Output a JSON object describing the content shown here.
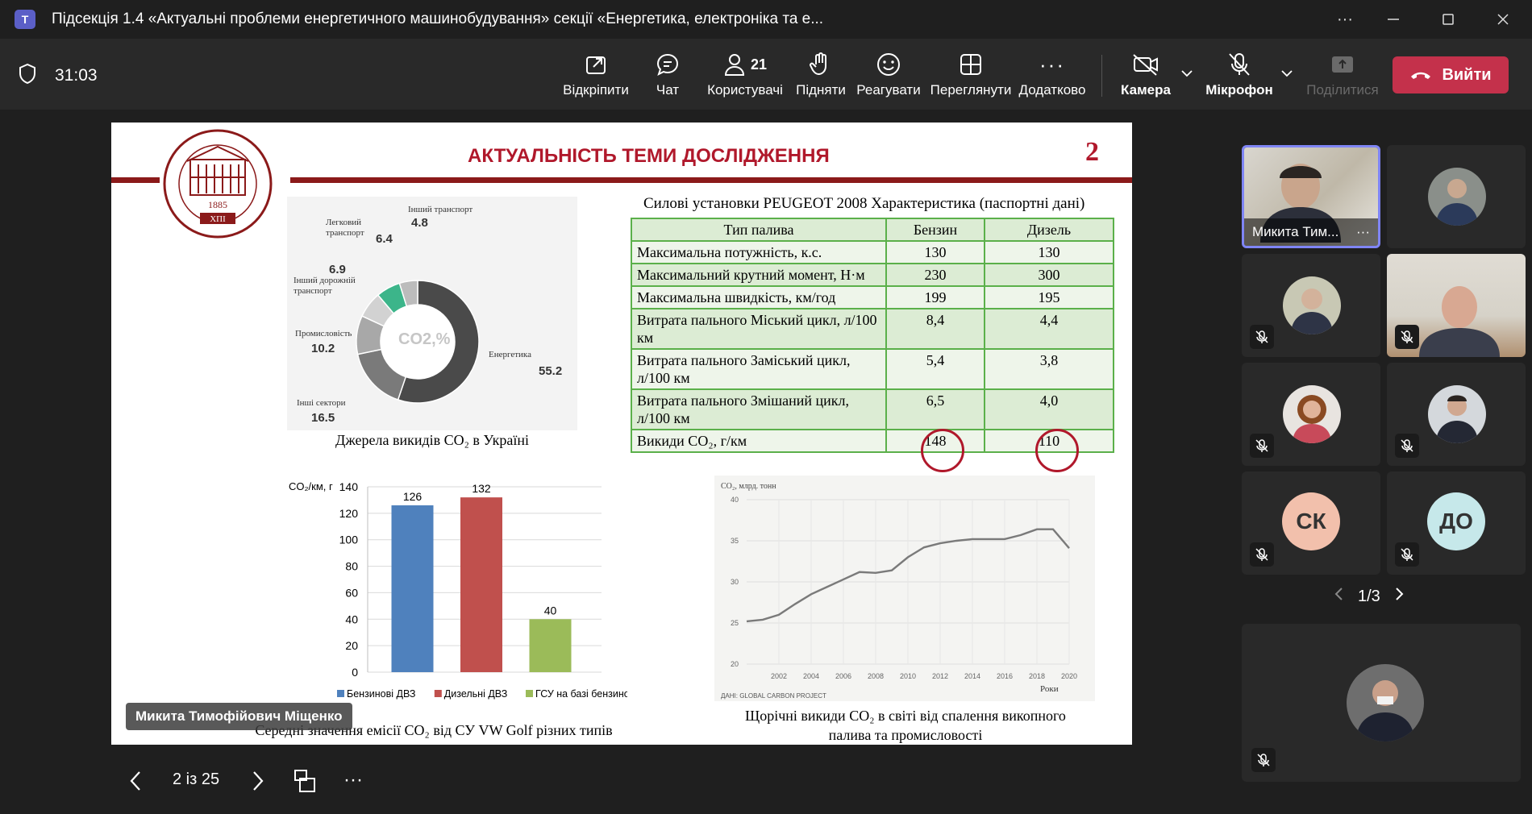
{
  "window": {
    "title": "Підсекція 1.4 «Актуальні проблеми енергетичного машинобудування» секції «Енергетика, електроніка та е...",
    "app_icon": "teams-icon"
  },
  "toolbar": {
    "timer": "31:03",
    "buttons": [
      {
        "label": "Відкріпити",
        "icon": "unpin-icon"
      },
      {
        "label": "Чат",
        "icon": "chat-icon"
      },
      {
        "label": "Користувачі",
        "icon": "people-icon",
        "count": "21"
      },
      {
        "label": "Підняти",
        "icon": "raise-hand-icon"
      },
      {
        "label": "Реагувати",
        "icon": "smile-icon"
      },
      {
        "label": "Переглянути",
        "icon": "view-grid-icon"
      },
      {
        "label": "Додатково",
        "icon": "more-icon"
      }
    ],
    "camera_label": "Камера",
    "mic_label": "Мікрофон",
    "share_label": "Поділитися",
    "leave_label": "Вийти"
  },
  "slide": {
    "title": "АКТУАЛЬНІСТЬ ТЕМИ ДОСЛІДЖЕННЯ",
    "number": "2",
    "logo_year": "1885",
    "logo_abbr": "ХПІ",
    "pie": {
      "center_label": "CO2,%",
      "caption": "Джерела викидів CO₂ в Україні",
      "slices": [
        {
          "label": "Енергетика",
          "value": "55.2",
          "color": "#4a4a4a"
        },
        {
          "label": "Інші сектори",
          "value": "16.5",
          "color": "#7a7a7a"
        },
        {
          "label": "Промисловість",
          "value": "10.2",
          "color": "#a8a8a8"
        },
        {
          "label": "Інший дорожній транспорт",
          "value": "6.9",
          "color": "#d2d2d2"
        },
        {
          "label": "Легковий транспорт",
          "value": "6.4",
          "color": "#3cb58a"
        },
        {
          "label": "Інший транспорт",
          "value": "4.8",
          "color": "#bcbcbc"
        }
      ]
    },
    "table": {
      "caption": "Силові установки PEUGEOT 2008 Характеристика (паспортні дані)",
      "headers": [
        "Тип палива",
        "Бензин",
        "Дизель"
      ],
      "rows": [
        [
          "Максимальна потужність, к.с.",
          "130",
          "130"
        ],
        [
          "Максимальний крутний момент, Н·м",
          "230",
          "300"
        ],
        [
          "Максимальна швидкість, км/год",
          "199",
          "195"
        ],
        [
          "Витрата пального Міський цикл, л/100 км",
          "8,4",
          "4,4"
        ],
        [
          "Витрата пального Заміський цикл, л/100 км",
          "5,4",
          "3,8"
        ],
        [
          "Витрата пального Змішаний цикл, л/100 км",
          "6,5",
          "4,0"
        ],
        [
          "Викиди  CO₂, г/км",
          "148",
          "110"
        ]
      ]
    },
    "bar_caption": "Середні значення емісії CO₂ від СУ VW Golf різних типів",
    "line_caption_1": "Щорічні викиди CO₂ в світі від спалення викопного",
    "line_caption_2": "палива та промисловості"
  },
  "chart_data": [
    {
      "type": "pie",
      "title": "CO2,%",
      "categories": [
        "Енергетика",
        "Інші сектори",
        "Промисловість",
        "Інший дорожній транспорт",
        "Легковий транспорт",
        "Інший транспорт"
      ],
      "values": [
        55.2,
        16.5,
        10.2,
        6.9,
        6.4,
        4.8
      ]
    },
    {
      "type": "bar",
      "ylabel": "CO₂/км, г",
      "ylim": [
        0,
        140
      ],
      "yticks": [
        0,
        20,
        40,
        60,
        80,
        100,
        120,
        140
      ],
      "grid": true,
      "legend": "bottom",
      "series": [
        {
          "name": "Бензинові ДВЗ",
          "values": [
            126
          ],
          "color": "#4f81bd"
        },
        {
          "name": "Дизельні ДВЗ",
          "values": [
            132
          ],
          "color": "#c0504d"
        },
        {
          "name": "ГСУ на базі бензинових ДВЗ",
          "values": [
            40
          ],
          "color": "#9bbb59"
        }
      ]
    },
    {
      "type": "line",
      "ylabel": "CO₂, млрд. тонн",
      "xlabel": "Роки",
      "source": "ДАНІ: GLOBAL CARBON PROJECT",
      "ylim": [
        20,
        40
      ],
      "yticks": [
        20,
        25,
        30,
        35,
        40
      ],
      "xticks": [
        2002,
        2004,
        2006,
        2008,
        2010,
        2012,
        2014,
        2016,
        2018,
        2020
      ],
      "grid": true,
      "x": [
        2000,
        2001,
        2002,
        2003,
        2004,
        2005,
        2006,
        2007,
        2008,
        2009,
        2010,
        2011,
        2012,
        2013,
        2014,
        2015,
        2016,
        2017,
        2018,
        2019,
        2020
      ],
      "y": [
        25.2,
        25.4,
        26.0,
        27.3,
        28.5,
        29.4,
        30.3,
        31.2,
        31.1,
        31.4,
        33.0,
        34.2,
        34.7,
        35.0,
        35.2,
        35.2,
        35.2,
        35.7,
        36.4,
        36.4,
        34.1
      ]
    }
  ],
  "participants": {
    "pinned_name": "Микита Тим...",
    "speaker_name": "Микита Тимофійович Міщенко",
    "initials": [
      "СК",
      "ДО"
    ],
    "pager": "1/3"
  },
  "nav": {
    "page": "2 із 25"
  }
}
